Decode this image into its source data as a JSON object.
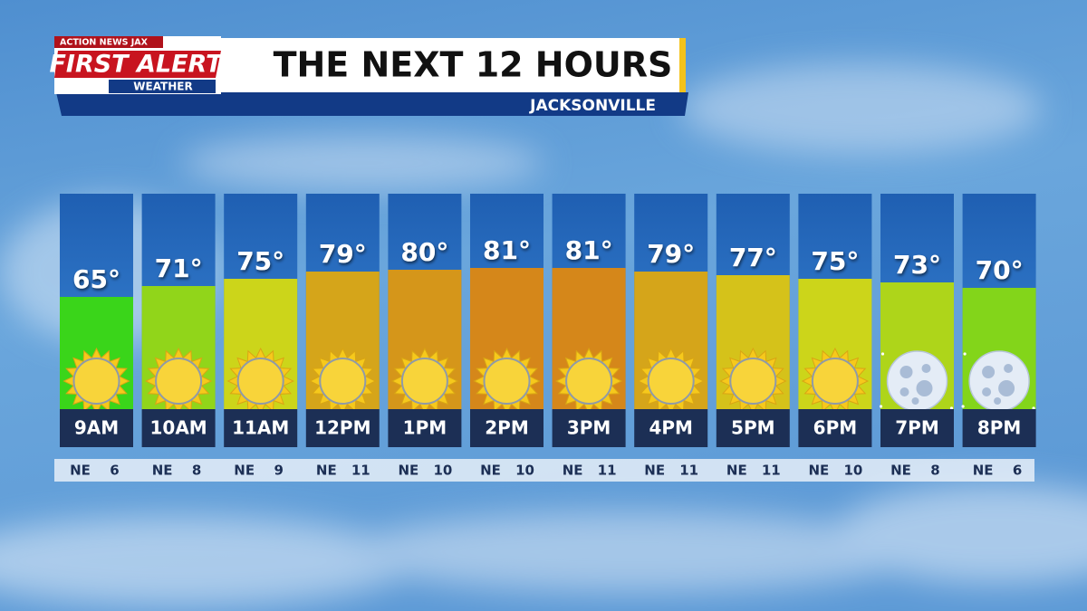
{
  "logo": {
    "top": "ACTION NEWS JAX",
    "main": "FIRST ALERT",
    "bottom": "WEATHER"
  },
  "chart_data": {
    "type": "bar",
    "title": "THE NEXT 12 HOURS",
    "subtitle": "JACKSONVILLE",
    "categories": [
      "9AM",
      "10AM",
      "11AM",
      "12PM",
      "1PM",
      "2PM",
      "3PM",
      "4PM",
      "5PM",
      "6PM",
      "7PM",
      "8PM"
    ],
    "values": [
      65,
      71,
      75,
      79,
      80,
      81,
      81,
      79,
      77,
      75,
      73,
      70
    ],
    "value_labels": [
      "65°",
      "71°",
      "75°",
      "79°",
      "80°",
      "81°",
      "81°",
      "79°",
      "77°",
      "75°",
      "73°",
      "70°"
    ],
    "wind_direction": [
      "NE",
      "NE",
      "NE",
      "NE",
      "NE",
      "NE",
      "NE",
      "NE",
      "NE",
      "NE",
      "NE",
      "NE"
    ],
    "wind_speed": [
      6,
      8,
      9,
      11,
      10,
      10,
      11,
      11,
      11,
      10,
      8,
      6
    ]
  }
}
